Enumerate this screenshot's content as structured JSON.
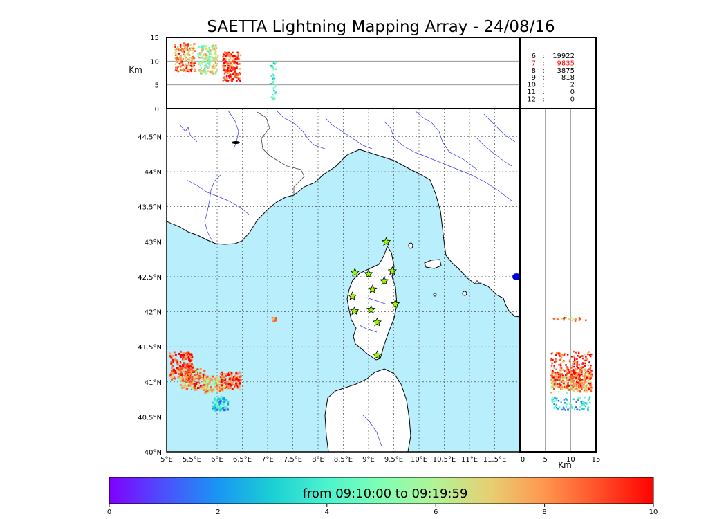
{
  "chart_data": {
    "type": "scatter",
    "title": "SAETTA Lightning Mapping Array - 24/08/16",
    "map": {
      "xlim": [
        5,
        12
      ],
      "ylim": [
        40,
        44.9
      ],
      "x_ticks": [
        "5°E",
        "5.5°E",
        "6°E",
        "6.5°E",
        "7°E",
        "7.5°E",
        "8°E",
        "8.5°E",
        "9°E",
        "9.5°E",
        "10°E",
        "10.5°E",
        "11°E",
        "11.5°E"
      ],
      "x_tick_values": [
        5,
        5.5,
        6,
        6.5,
        7,
        7.5,
        8,
        8.5,
        9,
        9.5,
        10,
        10.5,
        11,
        11.5
      ],
      "y_ticks": [
        "40°N",
        "40.5°N",
        "41°N",
        "41.5°N",
        "42°N",
        "42.5°N",
        "43°N",
        "43.5°N",
        "44°N",
        "44.5°N"
      ],
      "y_tick_values": [
        40,
        40.5,
        41,
        41.5,
        42,
        42.5,
        43,
        43.5,
        44,
        44.5
      ],
      "grid": true,
      "stations": [
        {
          "lon": 9.35,
          "lat": 43.0
        },
        {
          "lon": 8.73,
          "lat": 42.56
        },
        {
          "lon": 9.0,
          "lat": 42.54
        },
        {
          "lon": 9.47,
          "lat": 42.58
        },
        {
          "lon": 9.31,
          "lat": 42.44
        },
        {
          "lon": 9.08,
          "lat": 42.32
        },
        {
          "lon": 8.68,
          "lat": 42.22
        },
        {
          "lon": 9.53,
          "lat": 42.11
        },
        {
          "lon": 8.72,
          "lat": 42.01
        },
        {
          "lon": 9.05,
          "lat": 42.03
        },
        {
          "lon": 9.17,
          "lat": 41.85
        },
        {
          "lon": 9.17,
          "lat": 41.38
        }
      ],
      "storm_clusters": [
        {
          "lon": [
            5.05,
            5.5
          ],
          "lat": [
            41.05,
            41.45
          ],
          "time": 9
        },
        {
          "lon": [
            5.25,
            5.75
          ],
          "lat": [
            40.9,
            41.2
          ],
          "time": 8
        },
        {
          "lon": [
            5.7,
            6.1
          ],
          "lat": [
            40.85,
            41.1
          ],
          "time": 7
        },
        {
          "lon": [
            5.9,
            6.2
          ],
          "lat": [
            40.6,
            40.8
          ],
          "time": 3
        },
        {
          "lon": [
            6.05,
            6.45
          ],
          "lat": [
            40.9,
            41.15
          ],
          "time": 9
        },
        {
          "lon": [
            7.08,
            7.15
          ],
          "lat": [
            41.88,
            41.93
          ],
          "time": 8
        }
      ]
    },
    "alt_lon": {
      "ylim": [
        0,
        15
      ],
      "ylabel": "Km",
      "y_ticks": [
        0,
        5,
        10,
        15
      ],
      "hlines": [
        5,
        10
      ]
    },
    "alt_lat": {
      "xlim": [
        0,
        15
      ],
      "xlabel": "Km",
      "x_ticks": [
        0,
        5,
        10,
        15
      ],
      "vlines": [
        5,
        10
      ]
    },
    "station_counts": [
      {
        "stations": "6",
        "count": "19922",
        "color": "#000000"
      },
      {
        "stations": "7",
        "count": "9835",
        "color": "#ff0000"
      },
      {
        "stations": "8",
        "count": "3875",
        "color": "#000000"
      },
      {
        "stations": "9",
        "count": "818",
        "color": "#000000"
      },
      {
        "stations": "10",
        "count": "2",
        "color": "#000000"
      },
      {
        "stations": "11",
        "count": "0",
        "color": "#000000"
      },
      {
        "stations": "12",
        "count": "0",
        "color": "#000000"
      }
    ],
    "colorbar": {
      "range": [
        0,
        10
      ],
      "ticks": [
        0,
        2,
        4,
        6,
        8,
        10
      ],
      "label": "from 09:10:00 to 09:19:59",
      "colormap": "rainbow"
    }
  },
  "colors": {
    "sea": "#b9eefc",
    "land": "#ffffff",
    "coast": "#000000",
    "rivers": "#3333ee",
    "station_fill": "#99ff00"
  }
}
